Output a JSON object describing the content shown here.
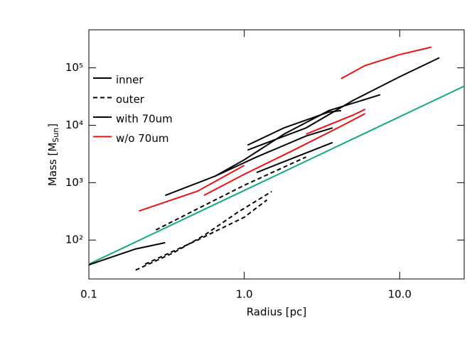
{
  "chart_data": {
    "type": "line",
    "xlog": true,
    "ylog": true,
    "x_label": "Radius [pc]",
    "y_label": {
      "main": "Mass [M",
      "sub": "Sun",
      "end": "]"
    },
    "xlim": [
      0.1,
      26
    ],
    "ylim": [
      21,
      460000
    ],
    "xticks": [
      0.1,
      {
        "value": 1,
        "label": "1.0"
      },
      {
        "value": 10,
        "label": "10.0"
      }
    ],
    "yticks": [
      {
        "value": 100,
        "label": "10²"
      },
      {
        "value": 1000,
        "label": "10³"
      },
      {
        "value": 10000,
        "label": "10⁴"
      },
      {
        "value": 100000,
        "label": "10⁵"
      }
    ],
    "legend": [
      {
        "label": "inner",
        "color": "#000000",
        "dash": false
      },
      {
        "label": "outer",
        "color": "#000000",
        "dash": true
      },
      {
        "label": "with 70um",
        "color": "#000000",
        "dash": false
      },
      {
        "label": "w/o 70um",
        "color": "#ee1111",
        "dash": false
      }
    ],
    "series": [
      {
        "color": "#11aa77",
        "dash": false,
        "x": [
          0.1,
          26
        ],
        "values": [
          38,
          48000
        ]
      },
      {
        "color": "#ee1111",
        "dash": false,
        "x": [
          0.21,
          0.5,
          1.0
        ],
        "values": [
          320,
          710,
          2000
        ]
      },
      {
        "color": "#ee1111",
        "dash": false,
        "x": [
          0.55,
          1.0,
          2.0,
          4.0,
          6.0
        ],
        "values": [
          600,
          1400,
          3500,
          9000,
          16000
        ]
      },
      {
        "color": "#ee1111",
        "dash": false,
        "x": [
          2.5,
          5,
          6
        ],
        "values": [
          7000,
          15000,
          19000
        ]
      },
      {
        "color": "#ee1111",
        "dash": false,
        "x": [
          4.2,
          6,
          10,
          16
        ],
        "values": [
          65000,
          110000,
          170000,
          230000
        ]
      },
      {
        "color": "#000000",
        "dash": false,
        "x": [
          0.1,
          0.2,
          0.31
        ],
        "values": [
          37,
          70,
          90
        ]
      },
      {
        "color": "#000000",
        "dash": false,
        "x": [
          0.31,
          0.65,
          1.2,
          2.5,
          3.7
        ],
        "values": [
          600,
          1300,
          2800,
          6500,
          9000
        ]
      },
      {
        "color": "#000000",
        "dash": false,
        "x": [
          0.65,
          1.0,
          1.8,
          3.5,
          7.5
        ],
        "values": [
          1300,
          2500,
          7000,
          18000,
          34000
        ]
      },
      {
        "color": "#000000",
        "dash": false,
        "x": [
          1.05,
          1.8,
          3.5,
          4.2
        ],
        "values": [
          4500,
          9000,
          17000,
          18000
        ]
      },
      {
        "color": "#000000",
        "dash": false,
        "x": [
          1.05,
          2.5,
          5,
          10,
          18
        ],
        "values": [
          3700,
          9000,
          27000,
          70000,
          150000
        ]
      },
      {
        "color": "#000000",
        "dash": false,
        "x": [
          1.2,
          2.0,
          3.7
        ],
        "values": [
          1500,
          2600,
          5000
        ]
      },
      {
        "color": "#000000",
        "dash": true,
        "x": [
          0.27,
          0.5,
          1.0,
          2.5
        ],
        "values": [
          150,
          350,
          900,
          2800
        ]
      },
      {
        "color": "#000000",
        "dash": true,
        "x": [
          0.2,
          0.35,
          0.55,
          0.9,
          1.5
        ],
        "values": [
          30,
          60,
          120,
          300,
          700
        ]
      },
      {
        "color": "#000000",
        "dash": true,
        "x": [
          0.23,
          0.5,
          1.0,
          1.4
        ],
        "values": [
          38,
          100,
          250,
          500
        ]
      }
    ]
  }
}
